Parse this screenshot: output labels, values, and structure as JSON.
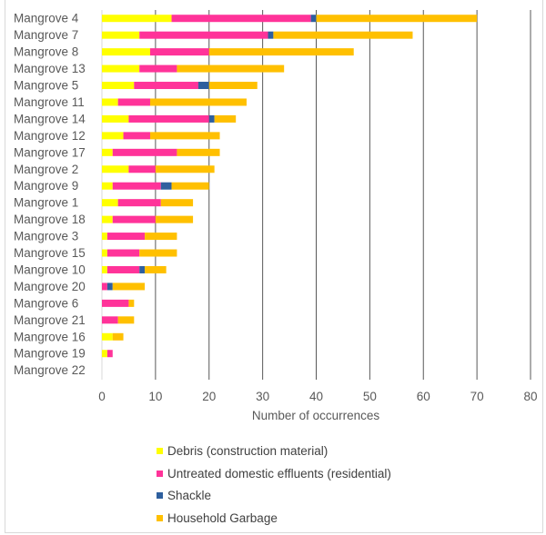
{
  "chart_data": {
    "type": "bar",
    "orientation": "horizontal",
    "stacked": true,
    "categories": [
      "Mangrove   4",
      "Mangrove   7",
      "Mangrove   8",
      "Mangrove 13",
      "Mangrove   5",
      "Mangrove 11",
      "Mangrove 14",
      "Mangrove 12",
      "Mangrove 17",
      "Mangrove   2",
      "Mangrove   9",
      "Mangrove   1",
      "Mangrove 18",
      "Mangrove   3",
      "Mangrove 15",
      "Mangrove 10",
      "Mangrove 20",
      "Mangrove   6",
      "Mangrove 21",
      "Mangrove 16",
      "Mangrove 19",
      "Mangrove 22"
    ],
    "series": [
      {
        "name": "Debris (construction material)",
        "color": "#FFFF00",
        "values": [
          13,
          7,
          9,
          7,
          6,
          3,
          5,
          4,
          2,
          5,
          2,
          3,
          2,
          1,
          1,
          1,
          0,
          0,
          0,
          2,
          1,
          0
        ]
      },
      {
        "name": "Untreated domestic effluents (residential)",
        "color": "#FF3399",
        "values": [
          26,
          24,
          11,
          7,
          12,
          6,
          15,
          5,
          12,
          5,
          9,
          8,
          8,
          7,
          6,
          6,
          1,
          5,
          3,
          0,
          1,
          0
        ]
      },
      {
        "name": "Shackle",
        "color": "#2E5F9E",
        "values": [
          1,
          1,
          0,
          0,
          2,
          0,
          1,
          0,
          0,
          0,
          2,
          0,
          0,
          0,
          0,
          1,
          1,
          0,
          0,
          0,
          0,
          0
        ]
      },
      {
        "name": "Household Garbage",
        "color": "#FFC000",
        "values": [
          30,
          26,
          27,
          20,
          9,
          18,
          4,
          13,
          8,
          11,
          7,
          6,
          7,
          6,
          7,
          4,
          6,
          1,
          3,
          2,
          0,
          0
        ]
      }
    ],
    "xlabel": "Number of occurrences",
    "ylabel": "",
    "xlim": [
      0,
      80
    ],
    "xticks": [
      "0",
      "10",
      "20",
      "30",
      "40",
      "50",
      "60",
      "70",
      "80"
    ],
    "grid": "vertical",
    "legend": "bottom"
  }
}
